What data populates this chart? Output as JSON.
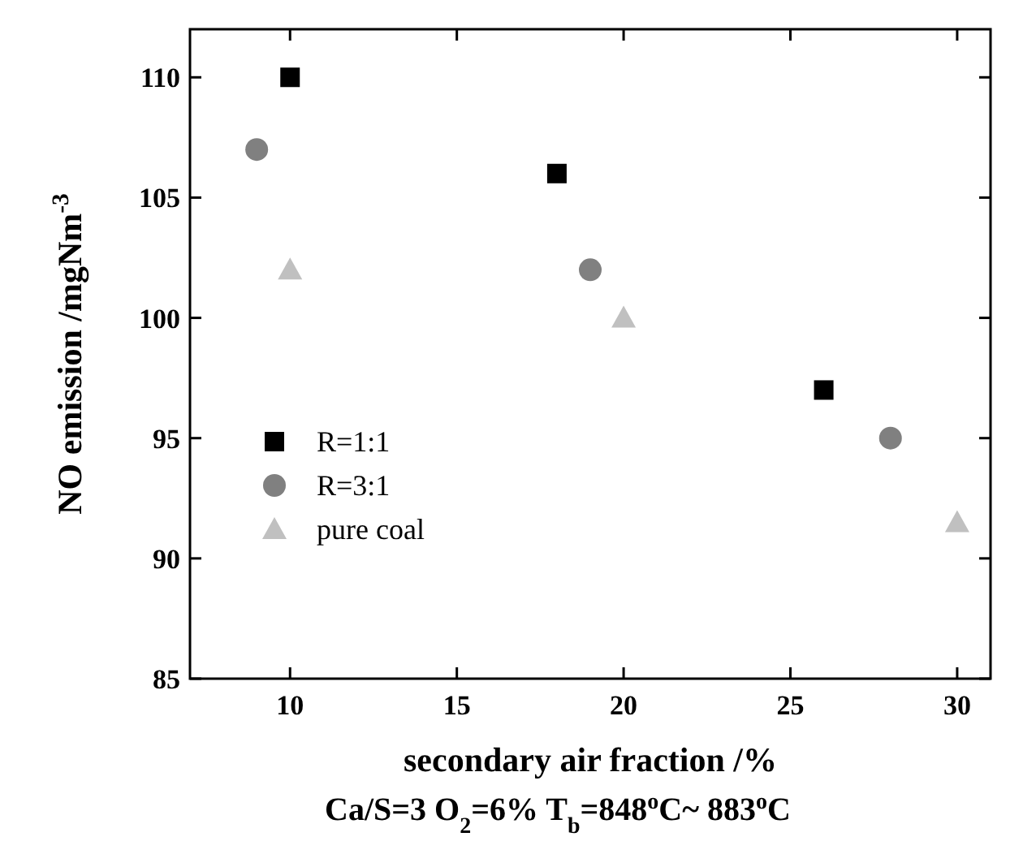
{
  "chart_data": {
    "type": "scatter",
    "xlabel": "secondary air fraction /%",
    "ylabel": "NO emission  /mgNm$^{-3}$",
    "annotations": [
      "Ca/S=3    O$_{2}$=6%    T$_{b}$=848$^{o}$C~ 883$^{o}$C"
    ],
    "xlim": [
      7,
      31
    ],
    "xticks": [
      10,
      15,
      20,
      25,
      30
    ],
    "ylim": [
      85,
      112
    ],
    "yticks": [
      85,
      90,
      95,
      100,
      105,
      110
    ],
    "legend": "left",
    "grid": false,
    "series": [
      {
        "name": "R=1:1",
        "color": "#000000",
        "marker": "square",
        "x": [
          10,
          18,
          26
        ],
        "values": [
          110,
          106,
          97
        ]
      },
      {
        "name": "R=3:1",
        "color": "#808080",
        "marker": "circle",
        "x": [
          9,
          19,
          28
        ],
        "values": [
          107,
          102,
          95
        ]
      },
      {
        "name": "pure coal",
        "color": "#c0c0c0",
        "marker": "triangle",
        "x": [
          10,
          20,
          30
        ],
        "values": [
          102,
          100,
          91.5
        ]
      }
    ]
  }
}
